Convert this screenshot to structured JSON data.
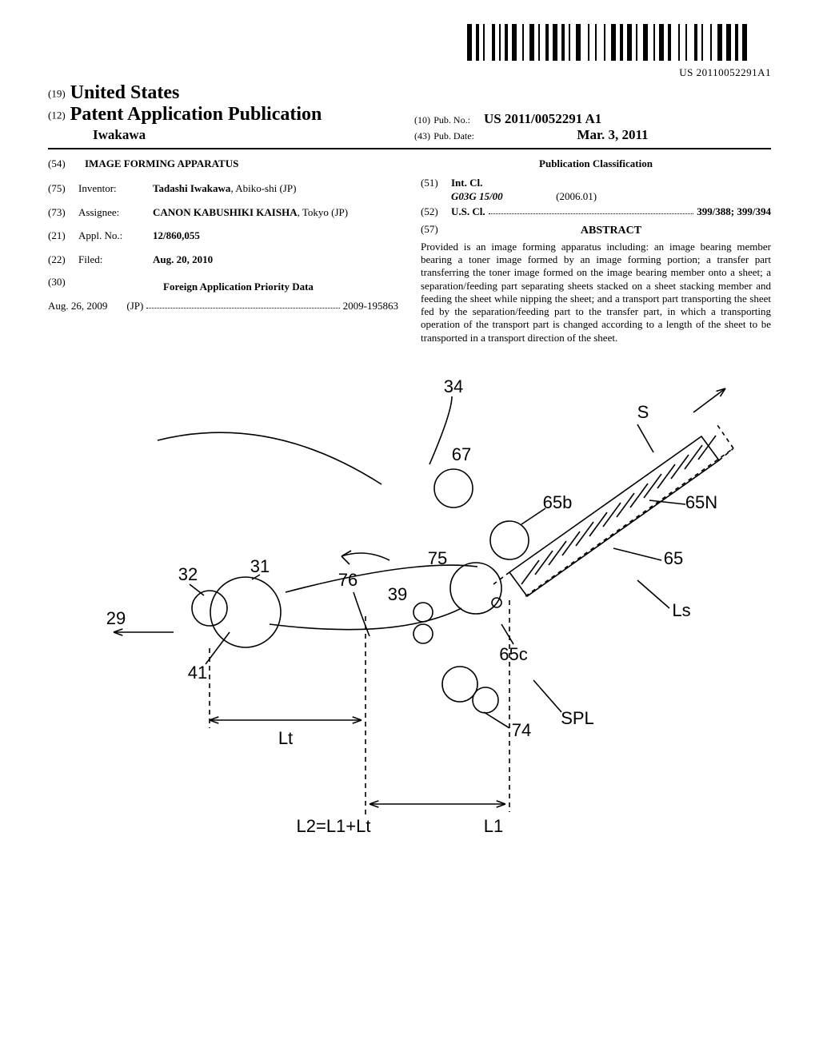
{
  "barcode": {
    "num": "US 20110052291A1",
    "bars": [
      3,
      1,
      2,
      1,
      1,
      3,
      2,
      1,
      1,
      1,
      2,
      1,
      3,
      2,
      1,
      2,
      3,
      1,
      1,
      2,
      2,
      1,
      3,
      1,
      2,
      1,
      1,
      2,
      3,
      3,
      1,
      2,
      1,
      3,
      1,
      2,
      3,
      1,
      2,
      1,
      3,
      1,
      1,
      2,
      3,
      2,
      1,
      1,
      3,
      1,
      2,
      3,
      1,
      2,
      1,
      3,
      2,
      1,
      1,
      3,
      1,
      2,
      3,
      1,
      3,
      1,
      2,
      1,
      3
    ]
  },
  "header": {
    "prefix19": "(19)",
    "country": "United States",
    "prefix12": "(12)",
    "pubtype": "Patent Application Publication",
    "author": "Iwakawa",
    "prefix10": "(10)",
    "pubno_label": "Pub. No.:",
    "pubno": "US 2011/0052291 A1",
    "prefix43": "(43)",
    "pubdate_label": "Pub. Date:",
    "pubdate": "Mar. 3, 2011"
  },
  "left": {
    "title_num": "(54)",
    "title": "IMAGE FORMING APPARATUS",
    "inventor_num": "(75)",
    "inventor_label": "Inventor:",
    "inventor": "Tadashi Iwakawa",
    "inventor_loc": ", Abiko-shi (JP)",
    "assignee_num": "(73)",
    "assignee_label": "Assignee:",
    "assignee": "CANON KABUSHIKI KAISHA",
    "assignee_loc": ", Tokyo (JP)",
    "applno_num": "(21)",
    "applno_label": "Appl. No.:",
    "applno": "12/860,055",
    "filed_num": "(22)",
    "filed_label": "Filed:",
    "filed": "Aug. 20, 2010",
    "priority_num": "(30)",
    "priority_heading": "Foreign Application Priority Data",
    "priority_date": "Aug. 26, 2009",
    "priority_cc": "(JP)",
    "priority_app": "2009-195863"
  },
  "right": {
    "class_heading": "Publication Classification",
    "intcl_num": "(51)",
    "intcl_label": "Int. Cl.",
    "intcl_code": "G03G 15/00",
    "intcl_date": "(2006.01)",
    "uscl_num": "(52)",
    "uscl_label": "U.S. Cl.",
    "uscl_codes": "399/388; 399/394",
    "abstract_num": "(57)",
    "abstract_heading": "ABSTRACT",
    "abstract": "Provided is an image forming apparatus including: an image bearing member bearing a toner image formed by an image forming portion; a transfer part transferring the toner image formed on the image bearing member onto a sheet; a separation/feeding part separating sheets stacked on a sheet stacking member and feeding the sheet while nipping the sheet; and a transport part transporting the sheet fed by the separation/feeding part to the transfer part, in which a transporting operation of the transport part is changed according to a length of the sheet to be transported in a transport direction of the sheet."
  },
  "diagram": {
    "labels": {
      "n34": "34",
      "n67": "67",
      "nS": "S",
      "n65b": "65b",
      "n65N": "65N",
      "n65": "65",
      "nLs": "Ls",
      "n31": "31",
      "n32": "32",
      "n75": "75",
      "n76": "76",
      "n39": "39",
      "n29": "29",
      "n41": "41",
      "n65c": "65c",
      "n74": "74",
      "nSPL": "SPL",
      "nLt": "Lt",
      "nL1": "L1",
      "nL2": "L2=L1+Lt"
    },
    "stroke": "#000000",
    "stroke_w": 1.6,
    "label_font": 22
  }
}
